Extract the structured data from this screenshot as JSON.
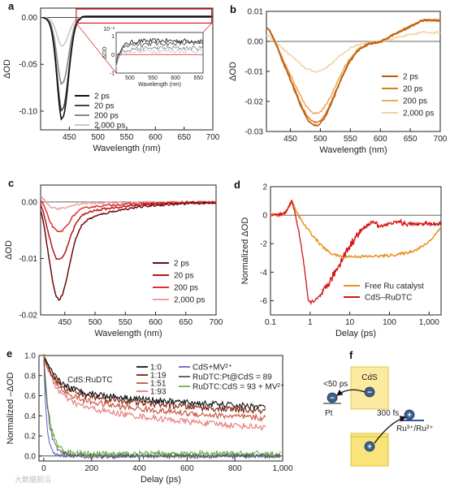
{
  "chart_data": [
    {
      "panel": "a",
      "type": "line",
      "xlabel": "Wavelength (nm)",
      "ylabel": "ΔOD",
      "xlim": [
        400,
        700
      ],
      "ylim": [
        -0.12,
        0.01
      ],
      "xticks": [
        "450",
        "500",
        "550",
        "600",
        "650",
        "700"
      ],
      "yticks": [
        "-0.10",
        "-0.05",
        "0.00"
      ],
      "series": [
        {
          "name": "2 ps",
          "color": "#111111",
          "min": -0.107
        },
        {
          "name": "20 ps",
          "color": "#444444",
          "min": -0.098
        },
        {
          "name": "200 ps",
          "color": "#888888",
          "min": -0.07
        },
        {
          "name": "2,000 ps",
          "color": "#c8c8c8",
          "min": -0.03
        }
      ],
      "inset": {
        "xlabel": "Wavelength (nm)",
        "ylabel": "ΔOD",
        "multiplier": "10⁻³",
        "xticks": [
          "500",
          "550",
          "600",
          "650"
        ],
        "yticks": [
          "-1",
          "0",
          "1"
        ],
        "ylim": [
          -1,
          1
        ]
      }
    },
    {
      "panel": "b",
      "type": "line",
      "xlabel": "Wavelength (nm)",
      "ylabel": "ΔOD",
      "xlim": [
        410,
        700
      ],
      "ylim": [
        -0.03,
        0.01
      ],
      "xticks": [
        "450",
        "500",
        "550",
        "600",
        "650",
        "700"
      ],
      "yticks": [
        "-0.03",
        "-0.02",
        "-0.01",
        "0.00",
        "0.01"
      ],
      "series": [
        {
          "name": "2 ps",
          "color": "#b85a10",
          "min": -0.028
        },
        {
          "name": "20 ps",
          "color": "#d8801e",
          "min": -0.027
        },
        {
          "name": "200 ps",
          "color": "#ecaa5a",
          "min": -0.024
        },
        {
          "name": "2,000 ps",
          "color": "#f4d2a4",
          "min": -0.01
        }
      ]
    },
    {
      "panel": "c",
      "type": "line",
      "xlabel": "Wavelength (nm)",
      "ylabel": "ΔOD",
      "xlim": [
        410,
        700
      ],
      "ylim": [
        -0.02,
        0.003
      ],
      "xticks": [
        "450",
        "500",
        "550",
        "600",
        "650",
        "700"
      ],
      "yticks": [
        "-0.02",
        "-0.01",
        "0.00"
      ],
      "series": [
        {
          "name": "2 ps",
          "color": "#6e0a0a",
          "min": -0.0172
        },
        {
          "name": "20 ps",
          "color": "#b31414",
          "min": -0.0103
        },
        {
          "name": "200 ps",
          "color": "#e03030",
          "min": -0.0053
        },
        {
          "name": "2,000 ps",
          "color": "#f0a0a0",
          "min": -0.0012
        }
      ]
    },
    {
      "panel": "d",
      "type": "line",
      "xscale": "log",
      "xlabel": "Delay (ps)",
      "ylabel": "Normalized ΔOD",
      "xlim": [
        0.1,
        2000
      ],
      "ylim": [
        -7,
        2
      ],
      "xticks": [
        "0.1",
        "1",
        "10",
        "100",
        "1,000"
      ],
      "yticks": [
        "-6",
        "-4",
        "-2",
        "0",
        "2"
      ],
      "series": [
        {
          "name": "Free Ru catalyst",
          "color": "#e8901c"
        },
        {
          "name": "CdS–RuDTC",
          "color": "#d41414"
        }
      ]
    },
    {
      "panel": "e",
      "type": "line",
      "xlabel": "Delay (ps)",
      "ylabel": "Normalized –ΔOD",
      "xlim": [
        -20,
        1000
      ],
      "ylim": [
        -0.05,
        1.0
      ],
      "xticks": [
        "0",
        "200",
        "400",
        "600",
        "800",
        "1,000"
      ],
      "yticks": [
        "0.0",
        "0.2",
        "0.4",
        "0.6",
        "0.8",
        "1.0"
      ],
      "annotation": "CdS:RuDTC",
      "series": [
        {
          "name": "1:0",
          "color": "#111111",
          "end": 0.43
        },
        {
          "name": "1:19",
          "color": "#7a1e0a",
          "end": 0.38
        },
        {
          "name": "1:51",
          "color": "#c85040",
          "end": 0.3
        },
        {
          "name": "1:93",
          "color": "#e87878",
          "end": 0.2
        },
        {
          "name": "CdS+MV²⁺",
          "color": "#6666cc",
          "end": 0.0
        },
        {
          "name": "RuDTC:Pt@CdS = 89",
          "color": "#555555",
          "end": 0.0
        },
        {
          "name": "RuDTC:CdS = 93 + MV²⁺",
          "color": "#6ab04a",
          "end": 0.0
        }
      ]
    }
  ],
  "scheme": {
    "panel": "f",
    "cds_label": "CdS",
    "time1": "<50 ps",
    "time2": "300 fs",
    "pt_label": "Pt",
    "ru_label": "Ru³⁺/Ru²⁺",
    "minus": "−",
    "plus": "+"
  },
  "watermark": "大数据前沿"
}
